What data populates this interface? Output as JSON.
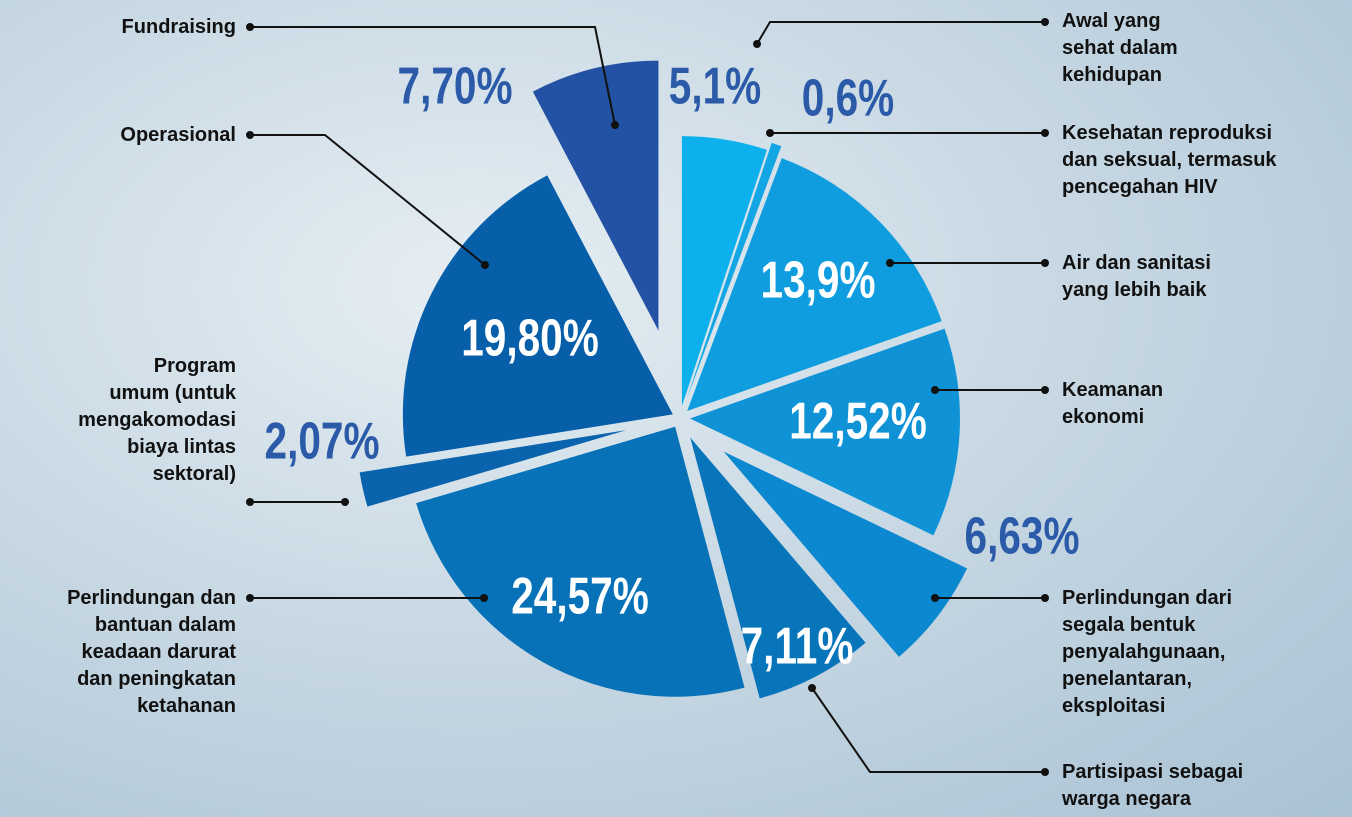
{
  "chart_data": {
    "type": "pie",
    "categories": [
      "Awal yang\nsehat dalam\nkehidupan",
      "Kesehatan reproduksi\ndan seksual, termasuk\npencegahan HIV",
      "Air dan sanitasi\nyang lebih baik",
      "Keamanan\nekonomi",
      "Perlindungan dari\nsegala bentuk\npenyalahgunaan,\npenelantaran,\neksploitasi",
      "Partisipasi sebagai\nwarga negara",
      "Perlindungan dan\nbantuan dalam\nkeadaan darurat\ndan peningkatan\nketahanan",
      "Program\numum (untuk\nmengakomodasi\nbiaya lintas\nsektoral)",
      "Operasional",
      "Fundraising"
    ],
    "values": [
      5.1,
      0.6,
      13.9,
      12.52,
      6.63,
      7.11,
      24.57,
      2.07,
      19.8,
      7.7
    ],
    "value_labels": [
      "5,1%",
      "0,6%",
      "13,9%",
      "12,52%",
      "6,63%",
      "7,11%",
      "24,57%",
      "2,07%",
      "19,80%",
      "7,70%"
    ],
    "colors": [
      "#0cb0ec",
      "#12a6e4",
      "#0f9ddf",
      "#0f93d6",
      "#0b88cf",
      "#0875bb",
      "#0772b8",
      "#0a63ad",
      "#075ea9",
      "#2352a4"
    ]
  }
}
